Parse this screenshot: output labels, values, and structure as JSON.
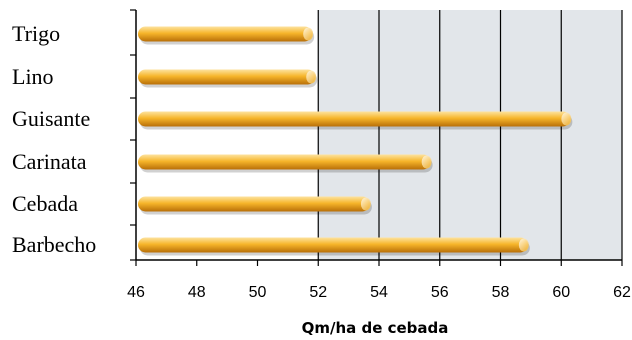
{
  "chart_data": {
    "type": "bar",
    "orientation": "horizontal",
    "categories": [
      "Trigo",
      "Lino",
      "Guisante",
      "Carinata",
      "Cebada",
      "Barbecho"
    ],
    "values": [
      51.8,
      51.9,
      60.3,
      55.7,
      53.7,
      58.9
    ],
    "xlabel": "Qm/ha de cebada",
    "xlim": [
      46,
      62
    ],
    "xticks": [
      46,
      48,
      50,
      52,
      54,
      56,
      58,
      60,
      62
    ],
    "grid": true,
    "colors": {
      "bar_top": "#fde3a0",
      "bar_mid": "#f6b52a",
      "bar_bottom": "#b86f08",
      "plot_background": "#e2e6ea",
      "grid_line": "#000000"
    }
  }
}
